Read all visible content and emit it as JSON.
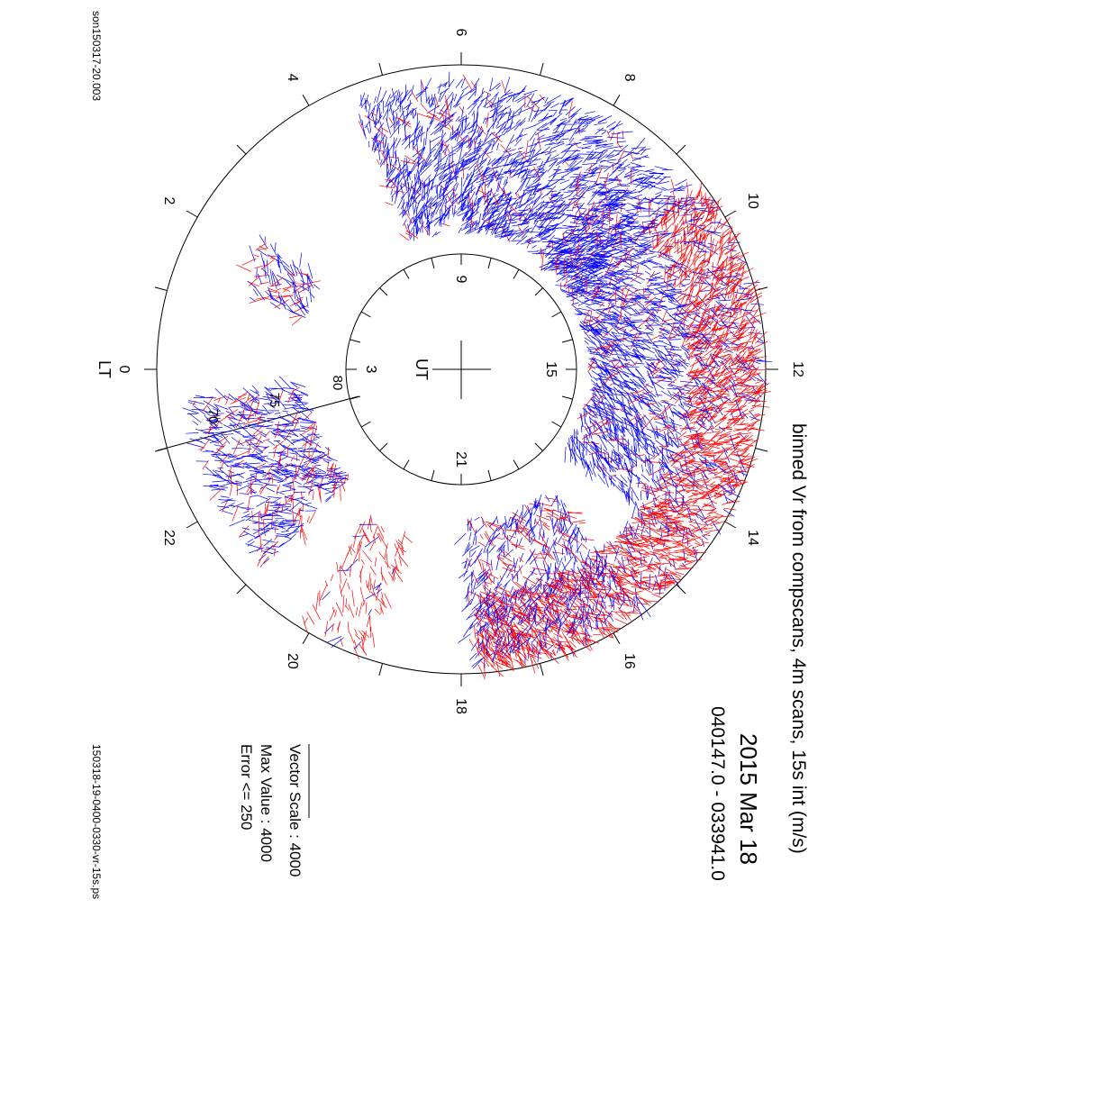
{
  "header": {
    "title": "binned Vr from compscans, 4m scans, 15s int (m/s)",
    "date": "2015 Mar 18",
    "time_range": "040147.0 - 033941.0"
  },
  "legend": {
    "vector_scale": "Vector Scale : 4000",
    "max_value": "Max Value : 4000",
    "error": "Error <= 250"
  },
  "footer": {
    "left_id": "son150317-20.003",
    "right_id": "150318-19-0400-0330-vr-15s.ps"
  },
  "dial": {
    "lt_label": "LT",
    "ut_label": "UT",
    "lt_ticks": [
      "0",
      "2",
      "4",
      "6",
      "8",
      "10",
      "12",
      "14",
      "16",
      "18",
      "20",
      "22"
    ],
    "ut_ticks": [
      "3",
      "9",
      "15",
      "21"
    ],
    "lat_labels": [
      "70",
      "75",
      "80"
    ]
  },
  "colors": {
    "positive": "#ff0000",
    "negative": "#0000ff",
    "axis": "#000000"
  }
}
